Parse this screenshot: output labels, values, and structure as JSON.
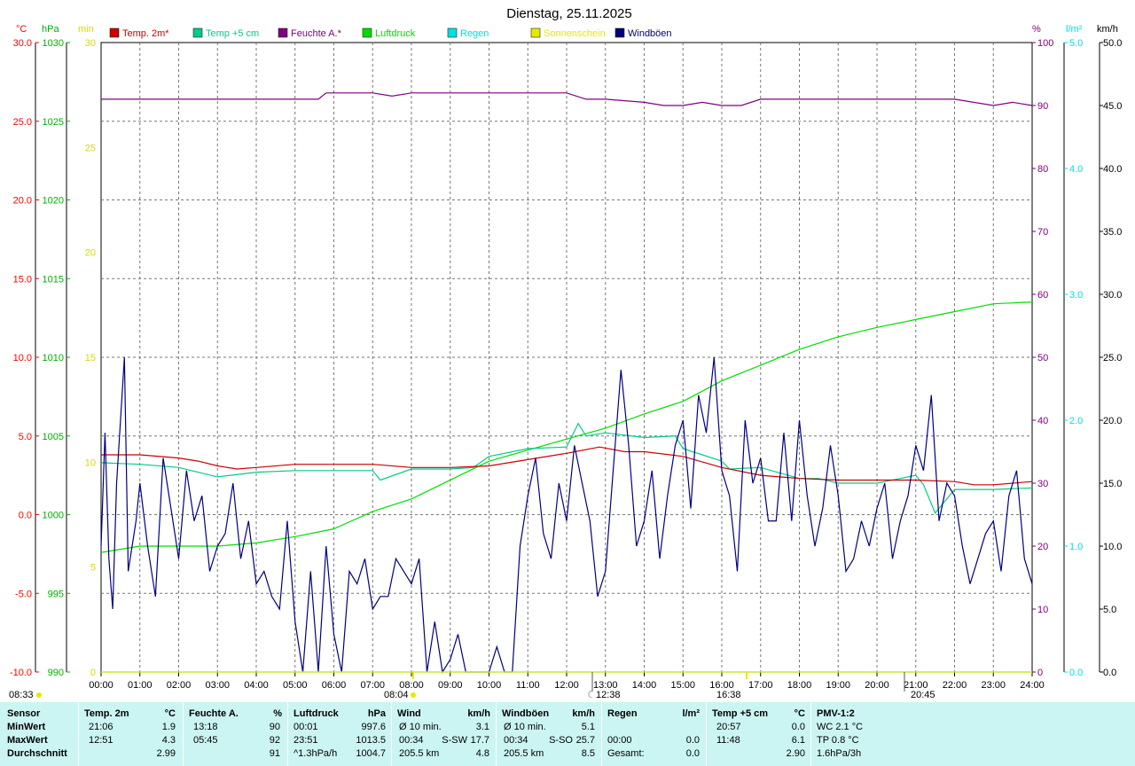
{
  "chart_data": {
    "type": "line",
    "title": "Dienstag, 25.11.2025",
    "x_ticks": [
      "00:00",
      "01:00",
      "02:00",
      "03:00",
      "04:00",
      "05:00",
      "06:00",
      "07:00",
      "08:00",
      "09:00",
      "10:00",
      "11:00",
      "12:00",
      "13:00",
      "14:00",
      "15:00",
      "16:00",
      "17:00",
      "18:00",
      "19:00",
      "20:00",
      "21:00",
      "22:00",
      "23:00",
      "24:00"
    ],
    "xlim": [
      0,
      24
    ],
    "grid": true,
    "legend_placement": "top",
    "axes": {
      "temp": {
        "unit": "°C",
        "ylim": [
          -10,
          30
        ],
        "ticks": [
          "-10.0",
          "-5.0",
          "0.0",
          "5.0",
          "10.0",
          "15.0",
          "20.0",
          "25.0",
          "30.0"
        ],
        "color": "#ff0000"
      },
      "pressure": {
        "unit": "hPa",
        "ylim": [
          990,
          1030
        ],
        "ticks": [
          "990",
          "995",
          "1000",
          "1005",
          "1010",
          "1015",
          "1020",
          "1025",
          "1030"
        ],
        "color": "#00b000"
      },
      "sunshine": {
        "unit": "min",
        "ylim": [
          0,
          30
        ],
        "ticks": [
          "0",
          "5",
          "10",
          "15",
          "20",
          "25",
          "30"
        ],
        "color": "#d8d800"
      },
      "humidity": {
        "unit": "%",
        "ylim": [
          0,
          100
        ],
        "ticks": [
          "0",
          "10",
          "20",
          "30",
          "40",
          "50",
          "60",
          "70",
          "80",
          "90",
          "100"
        ],
        "color": "#800080"
      },
      "rain": {
        "unit": "l/m²",
        "ylim": [
          0,
          5
        ],
        "ticks": [
          "0.0",
          "1.0",
          "2.0",
          "3.0",
          "4.0",
          "5.0"
        ],
        "color": "#00e0e0"
      },
      "wind": {
        "unit": "km/h",
        "ylim": [
          0,
          50
        ],
        "ticks": [
          "0.0",
          "5.0",
          "10.0",
          "15.0",
          "20.0",
          "25.0",
          "30.0",
          "35.0",
          "40.0",
          "45.0",
          "50.0"
        ],
        "color": "#000000"
      }
    },
    "legend": [
      {
        "label": "Temp. 2m*",
        "color": "#cc0000"
      },
      {
        "label": "Temp +5 cm",
        "color": "#00cc88"
      },
      {
        "label": "Feuchte A.*",
        "color": "#800080"
      },
      {
        "label": "Luftdruck",
        "color": "#00dd00"
      },
      {
        "label": "Regen",
        "color": "#00e0e0"
      },
      {
        "label": "Sonnenschein",
        "color": "#e8e800"
      },
      {
        "label": "Windböen",
        "color": "#000080"
      }
    ],
    "series": [
      {
        "name": "Temp. 2m*",
        "axis": "temp",
        "color": "#cc0000",
        "x": [
          0,
          1,
          2,
          2.5,
          3,
          3.5,
          4,
          5,
          6,
          7,
          8,
          9,
          10,
          11,
          12,
          12.85,
          13.5,
          14,
          15,
          16,
          17,
          18,
          19,
          20,
          21,
          22,
          22.5,
          23,
          24
        ],
        "y": [
          3.8,
          3.8,
          3.6,
          3.4,
          3.1,
          2.9,
          3.0,
          3.2,
          3.2,
          3.2,
          3.0,
          3.0,
          3.1,
          3.5,
          3.9,
          4.3,
          4.0,
          4.0,
          3.7,
          3.0,
          2.5,
          2.3,
          2.2,
          2.2,
          2.2,
          2.1,
          1.9,
          1.9,
          2.1
        ]
      },
      {
        "name": "Temp +5 cm",
        "axis": "temp",
        "color": "#00cc88",
        "x": [
          0,
          1,
          2,
          3,
          4,
          5,
          6,
          7,
          7.2,
          8,
          9,
          9.6,
          10,
          11,
          12,
          12.3,
          12.5,
          13,
          14,
          14.8,
          15,
          15.5,
          16,
          16.2,
          17,
          18,
          18.5,
          19,
          20,
          21,
          21.2,
          21.5,
          22,
          23,
          24
        ],
        "y": [
          3.3,
          3.2,
          3.0,
          2.4,
          2.7,
          2.8,
          2.8,
          2.8,
          2.2,
          2.9,
          2.9,
          3.0,
          3.7,
          4.2,
          4.3,
          5.8,
          5.0,
          5.2,
          4.9,
          5.0,
          4.2,
          3.8,
          3.4,
          2.9,
          3.0,
          2.3,
          2.3,
          2.0,
          2.0,
          2.5,
          1.9,
          0.1,
          1.6,
          1.6,
          1.7
        ]
      },
      {
        "name": "Feuchte A.*",
        "axis": "humidity",
        "color": "#800080",
        "x": [
          0,
          1,
          2,
          3,
          4,
          5,
          5.6,
          5.8,
          6,
          7,
          7.5,
          8,
          9,
          10,
          11,
          12,
          12.5,
          13,
          14,
          14.5,
          15,
          15.5,
          16,
          16.5,
          17,
          18,
          19,
          20,
          21,
          22,
          23,
          23.5,
          24
        ],
        "y": [
          91,
          91,
          91,
          91,
          91,
          91,
          91,
          92,
          92,
          92,
          91.5,
          92,
          92,
          92,
          92,
          92,
          91,
          91,
          90.5,
          90,
          90,
          90.5,
          90,
          90,
          91,
          91,
          91,
          91,
          91,
          91,
          90,
          90.5,
          90
        ]
      },
      {
        "name": "Luftdruck",
        "axis": "pressure",
        "color": "#00dd00",
        "x": [
          0,
          1,
          2,
          3,
          4,
          5,
          6,
          7,
          8,
          9,
          10,
          11,
          12,
          13,
          14,
          15,
          16,
          17,
          18,
          19,
          20,
          21,
          22,
          23,
          23.85,
          24
        ],
        "y": [
          997.6,
          998.0,
          998.0,
          998.0,
          998.2,
          998.6,
          999.1,
          1000.2,
          1001.0,
          1002.2,
          1003.4,
          1004.1,
          1004.8,
          1005.5,
          1006.4,
          1007.2,
          1008.5,
          1009.5,
          1010.5,
          1011.3,
          1011.9,
          1012.4,
          1012.9,
          1013.4,
          1013.5,
          1013.5
        ]
      },
      {
        "name": "Regen",
        "axis": "rain",
        "color": "#00e0e0",
        "x": [
          0,
          24
        ],
        "y": [
          0,
          0
        ]
      },
      {
        "name": "Sonnenschein",
        "axis": "sunshine",
        "color": "#e8e800",
        "x": [
          0,
          24
        ],
        "y": [
          0,
          0
        ]
      },
      {
        "name": "Windböen",
        "axis": "wind",
        "color": "#000080",
        "x": [
          0,
          0.1,
          0.2,
          0.3,
          0.4,
          0.5,
          0.6,
          0.7,
          0.8,
          0.9,
          1,
          1.2,
          1.4,
          1.6,
          1.8,
          2,
          2.2,
          2.4,
          2.6,
          2.8,
          3,
          3.2,
          3.4,
          3.6,
          3.8,
          4,
          4.2,
          4.4,
          4.6,
          4.8,
          5,
          5.2,
          5.4,
          5.6,
          5.8,
          6,
          6.2,
          6.4,
          6.6,
          6.8,
          7,
          7.2,
          7.4,
          7.6,
          7.8,
          8,
          8.2,
          8.4,
          8.6,
          8.8,
          9,
          9.2,
          9.4,
          9.6,
          9.8,
          10,
          10.2,
          10.4,
          10.6,
          10.8,
          11,
          11.2,
          11.4,
          11.6,
          11.8,
          12,
          12.2,
          12.4,
          12.6,
          12.8,
          13,
          13.2,
          13.4,
          13.6,
          13.8,
          14,
          14.2,
          14.4,
          14.6,
          14.8,
          15,
          15.2,
          15.4,
          15.6,
          15.8,
          16,
          16.2,
          16.4,
          16.6,
          16.8,
          17,
          17.2,
          17.4,
          17.6,
          17.8,
          18,
          18.2,
          18.4,
          18.6,
          18.8,
          19,
          19.2,
          19.4,
          19.6,
          19.8,
          20,
          20.2,
          20.4,
          20.6,
          20.8,
          21,
          21.2,
          21.4,
          21.6,
          21.8,
          22,
          22.2,
          22.4,
          22.6,
          22.8,
          23,
          23.2,
          23.4,
          23.6,
          23.8,
          24
        ],
        "y": [
          10,
          19,
          9,
          5,
          15,
          20,
          25,
          8,
          10,
          12,
          15,
          10,
          6,
          17,
          13,
          9,
          16,
          12,
          14,
          8,
          10,
          11,
          15,
          9,
          12,
          7,
          8,
          6,
          5,
          12,
          4,
          0,
          8,
          0,
          10,
          3,
          0,
          8,
          7,
          9,
          5,
          6,
          6,
          9,
          8,
          7,
          9,
          0,
          4,
          0,
          1,
          3,
          0,
          0,
          0,
          0,
          2,
          0,
          0,
          10,
          14,
          17,
          11,
          9,
          15,
          12,
          18,
          15,
          12,
          6,
          8,
          16,
          24,
          18,
          10,
          12,
          16,
          9,
          14,
          18,
          20,
          13,
          22,
          19,
          25,
          16,
          14,
          8,
          20,
          15,
          17,
          12,
          12,
          19,
          12,
          20,
          14,
          10,
          13,
          18,
          14,
          8,
          9,
          12,
          10,
          13,
          15,
          9,
          12,
          14,
          18,
          16,
          22,
          12,
          15,
          14,
          10,
          7,
          9,
          11,
          12,
          8,
          14,
          16,
          9,
          7
        ]
      }
    ]
  },
  "stats": {
    "headers": {
      "sensor": "Sensor",
      "temp": "Temp. 2m",
      "temp_unit": "°C",
      "hum": "Feuchte A.",
      "hum_unit": "%",
      "press": "Luftdruck",
      "press_unit": "hPa",
      "wind": "Wind",
      "wind_unit": "km/h",
      "gust": "Windböen",
      "gust_unit": "km/h",
      "rain": "Regen",
      "rain_unit": "l/m²",
      "t5": "Temp +5 cm",
      "t5_unit": "°C",
      "pmv": "PMV-1:2"
    },
    "rows": [
      {
        "label": "MinWert",
        "temp_time": "21:06",
        "temp_val": "1.9",
        "hum_time": "13:18",
        "hum_val": "90",
        "press_time": "00:01",
        "press_val": "997.6",
        "wind_time": "Ø 10 min.",
        "wind_dir": "",
        "wind_val": "3.1",
        "gust_time": "Ø 10 min.",
        "gust_dir": "",
        "gust_val": "5.1",
        "rain_time": "",
        "rain_val": "",
        "t5_time": "20:57",
        "t5_val": "0.0",
        "pmv": "WC 2.1 °C"
      },
      {
        "label": "MaxWert",
        "temp_time": "12:51",
        "temp_val": "4.3",
        "hum_time": "05:45",
        "hum_val": "92",
        "press_time": "23:51",
        "press_val": "1013.5",
        "wind_time": "00:34",
        "wind_dir": "S-SW",
        "wind_val": "17.7",
        "gust_time": "00:34",
        "gust_dir": "S-SO",
        "gust_val": "25.7",
        "rain_time": "00:00",
        "rain_val": "0.0",
        "t5_time": "11:48",
        "t5_val": "6.1",
        "pmv": "TP 0.8 °C"
      },
      {
        "label": "Durchschnitt",
        "temp_time": "",
        "temp_val": "2.99",
        "hum_time": "",
        "hum_val": "91",
        "press_time": "^1.3hPa/h",
        "press_val": "1004.7",
        "wind_time": "205.5 km",
        "wind_dir": "",
        "wind_val": "4.8",
        "gust_time": "205.5 km",
        "gust_dir": "",
        "gust_val": "8.5",
        "rain_time": "Gesamt:",
        "rain_val": "0.0",
        "t5_time": "",
        "t5_val": "2.90",
        "pmv": "1.6hPa/3h"
      }
    ]
  },
  "markers": {
    "sunrise": "08:33",
    "sun_mid_top": "08:04",
    "moonset": "12:38",
    "moonrise": "16:38",
    "moon_late": "20:45"
  }
}
